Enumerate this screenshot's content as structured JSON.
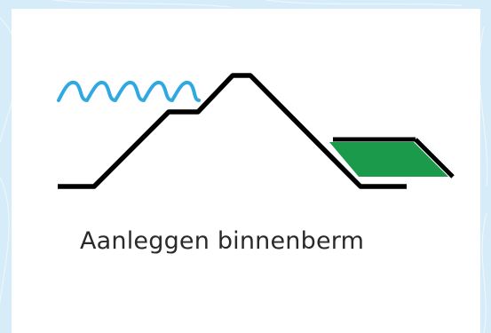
{
  "caption": "Aanleggen binnenberm",
  "colors": {
    "background": "#d9eef9",
    "card": "#ffffff",
    "dike_line": "#000000",
    "water": "#2fa9df",
    "berm_fill": "#1a9a4a",
    "caption_text": "#2a2a2a"
  },
  "icons": [
    "water-waves-icon",
    "dike-profile-icon",
    "inner-berm-icon"
  ]
}
